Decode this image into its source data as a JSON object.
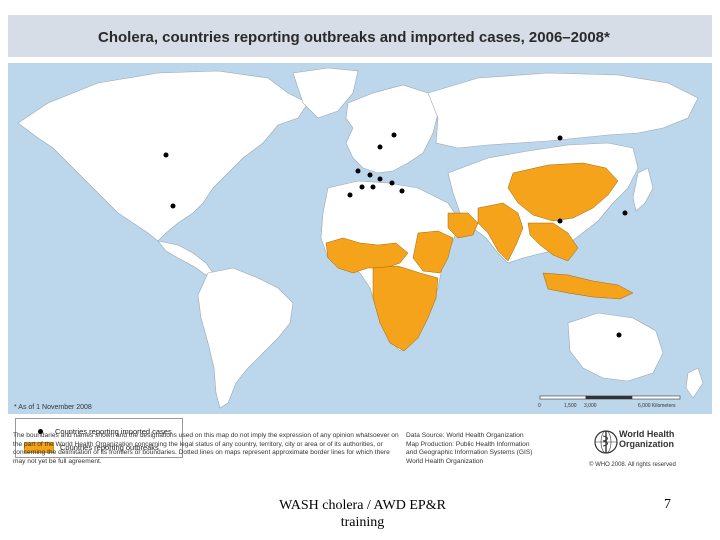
{
  "title": "Cholera, countries reporting outbreaks and imported cases, 2006–2008*",
  "note": "* As of 1 November 2008",
  "legend": {
    "imported_label": "Countries reporting imported cases",
    "outbreaks_label": "Countries reporting outbreaks"
  },
  "scale_bar": {
    "labels": [
      "0",
      "1,500",
      "3,000",
      "6,000 Kilometers"
    ]
  },
  "disclaimer": "The boundaries and names shown and the designations used on this map do not imply the expression of any opinion whatsoever on the part of the World Health Organization concerning the legal status of any country, territory, city or area or of its authorities, or concerning the delimitation of its frontiers or boundaries. Dotted lines on maps represent approximate border lines for which there may not yet be full agreement.",
  "data_source": {
    "line1": "Data Source: World Health Organization",
    "line2": "Map Production: Public Health Information",
    "line3": "and Geographic Information Systems (GIS)",
    "line4": "World Health Organization"
  },
  "who": {
    "name_line1": "World Health",
    "name_line2": "Organization",
    "copyright": "© WHO 2008. All rights reserved"
  },
  "footer": {
    "text": "WASH cholera / AWD EP&R training",
    "page": "7"
  },
  "colors": {
    "ocean": "#bcd6ec",
    "land": "#ffffff",
    "outbreak": "#f5a31a",
    "imported_dot": "#000000"
  },
  "outbreak_regions": [
    "Africa",
    "Middle East",
    "South Asia",
    "China",
    "Southeast Asia"
  ],
  "imported_regions": [
    "Canada",
    "USA",
    "Russia",
    "Europe",
    "Japan",
    "Australia"
  ]
}
